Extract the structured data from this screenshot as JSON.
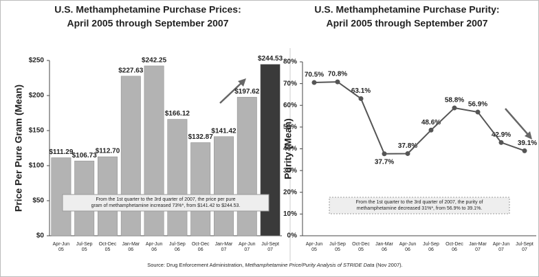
{
  "chart_data": [
    {
      "type": "bar",
      "title": [
        "U.S. Methamphetamine Purchase Prices:",
        "April 2005 through September 2007"
      ],
      "y_label": "Price Per Pure Gram (Mean)",
      "categories": [
        [
          "Apr-Jun",
          "05"
        ],
        [
          "Jul-Sep",
          "05"
        ],
        [
          "Oct-Dec",
          "05"
        ],
        [
          "Jan-Mar",
          "06"
        ],
        [
          "Apr-Jun",
          "06"
        ],
        [
          "Jul-Sep",
          "06"
        ],
        [
          "Oct-Dec",
          "06"
        ],
        [
          "Jan-Mar",
          "07"
        ],
        [
          "Apr-Jun",
          "07"
        ],
        [
          "Jul-Sept",
          "07"
        ]
      ],
      "values": [
        111.29,
        106.73,
        112.7,
        227.63,
        242.25,
        166.12,
        132.87,
        141.42,
        197.62,
        244.53
      ],
      "value_labels": [
        "$111.29",
        "$106.73",
        "$112.70",
        "$227.63",
        "$242.25",
        "$166.12",
        "$132.87",
        "$141.42",
        "$197.62",
        "$244.53"
      ],
      "colors": [
        "#b3b3b3",
        "#b3b3b3",
        "#b3b3b3",
        "#b3b3b3",
        "#b3b3b3",
        "#b3b3b3",
        "#b3b3b3",
        "#b3b3b3",
        "#b3b3b3",
        "#3a3a3a"
      ],
      "ylim": [
        0,
        250
      ],
      "yticks": [
        {
          "value": 0,
          "label": "$0"
        },
        {
          "value": 50,
          "label": "$50"
        },
        {
          "value": 100,
          "label": "$100"
        },
        {
          "value": 150,
          "label": "$150"
        },
        {
          "value": 200,
          "label": "$200"
        },
        {
          "value": 250,
          "label": "$250"
        }
      ],
      "annotation": [
        "From the 1st quarter to the 3rd quarter of 2007, the price per pure",
        "gram of methamphetamine increased 73%*, from $141.42 to $244.53."
      ]
    },
    {
      "type": "line",
      "title": [
        "U.S. Methamphetamine Purchase Purity:",
        "April 2005 through September 2007"
      ],
      "y_label": "Purity (Mean)",
      "categories": [
        [
          "Apr-Jun",
          "05"
        ],
        [
          "Jul-Sep",
          "05"
        ],
        [
          "Oct-Dec",
          "05"
        ],
        [
          "Jan-Mar",
          "06"
        ],
        [
          "Apr-Jun",
          "06"
        ],
        [
          "Jul-Sep",
          "06"
        ],
        [
          "Oct-Dec",
          "06"
        ],
        [
          "Jan-Mar",
          "07"
        ],
        [
          "Apr-Jun",
          "07"
        ],
        [
          "Jul-Sept",
          "07"
        ]
      ],
      "values": [
        70.5,
        70.8,
        63.1,
        37.7,
        37.8,
        48.6,
        58.8,
        56.9,
        42.9,
        39.1
      ],
      "value_labels": [
        "70.5%",
        "70.8%",
        "63.1%",
        "37.7%",
        "37.8%",
        "48.6%",
        "58.8%",
        "56.9%",
        "42.9%",
        "39.1%"
      ],
      "color": "#555555",
      "ylim": [
        0,
        80
      ],
      "yticks": [
        {
          "value": 0,
          "label": "0%"
        },
        {
          "value": 10,
          "label": "10%"
        },
        {
          "value": 20,
          "label": "20%"
        },
        {
          "value": 30,
          "label": "30%"
        },
        {
          "value": 40,
          "label": "40%"
        },
        {
          "value": 50,
          "label": "50%"
        },
        {
          "value": 60,
          "label": "60%"
        },
        {
          "value": 70,
          "label": "70%"
        },
        {
          "value": 80,
          "label": "80%"
        }
      ],
      "annotation": [
        "From the 1st quarter to the 3rd quarter of 2007, the purity of",
        "methamphetamine decreased 31%*, from 56.9% to 39.1%."
      ]
    }
  ],
  "source": {
    "prefix": "Source: Drug Enforcement Administration, ",
    "title": "Methamphetamine Price/Purity Analysis of STRIDE Data",
    "suffix": " (Nov 2007)."
  }
}
